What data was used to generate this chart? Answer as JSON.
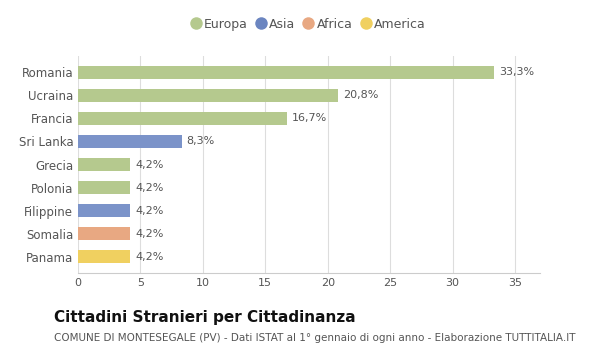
{
  "categories": [
    "Romania",
    "Ucraina",
    "Francia",
    "Sri Lanka",
    "Grecia",
    "Polonia",
    "Filippine",
    "Somalia",
    "Panama"
  ],
  "values": [
    33.3,
    20.8,
    16.7,
    8.3,
    4.2,
    4.2,
    4.2,
    4.2,
    4.2
  ],
  "labels": [
    "33,3%",
    "20,8%",
    "16,7%",
    "8,3%",
    "4,2%",
    "4,2%",
    "4,2%",
    "4,2%",
    "4,2%"
  ],
  "colors": [
    "#b5c98e",
    "#b5c98e",
    "#b5c98e",
    "#7b93c9",
    "#b5c98e",
    "#b5c98e",
    "#7b93c9",
    "#e8a882",
    "#f0d060"
  ],
  "legend": {
    "Europa": "#b5c98e",
    "Asia": "#6b85c0",
    "Africa": "#e8a882",
    "America": "#f0d060"
  },
  "xlim": [
    0,
    37
  ],
  "xticks": [
    0,
    5,
    10,
    15,
    20,
    25,
    30,
    35
  ],
  "title": "Cittadini Stranieri per Cittadinanza",
  "subtitle": "COMUNE DI MONTESEGALE (PV) - Dati ISTAT al 1° gennaio di ogni anno - Elaborazione TUTTITALIA.IT",
  "background_color": "#ffffff",
  "bar_height": 0.55,
  "label_fontsize": 8,
  "title_fontsize": 11,
  "subtitle_fontsize": 7.5,
  "ytick_fontsize": 8.5,
  "xtick_fontsize": 8
}
